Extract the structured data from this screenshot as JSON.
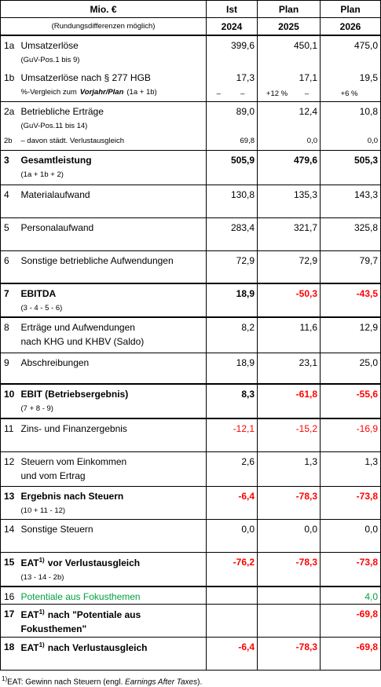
{
  "header": {
    "title": "Mio. €",
    "subtitle": "(Rundungsdifferenzen möglich)",
    "columns": [
      {
        "kind": "Ist",
        "year": "2024"
      },
      {
        "kind": "Plan",
        "year": "2025"
      },
      {
        "kind": "Plan",
        "year": "2026"
      }
    ]
  },
  "rows": [
    {
      "num": "1a",
      "label": "Umsatzerlöse",
      "sub": "(GuV-Pos.1 bis 9)",
      "values": [
        "399,6",
        "450,1",
        "475,0"
      ]
    },
    {
      "num": "1b",
      "label": "Umsatzerlöse nach § 277 HGB",
      "sub": "%-Vergleich zum",
      "sub_em": "Vorjahr/Plan",
      "sub_after": "(1a + 1b)",
      "values": [
        "17,3",
        "17,1",
        "19,5"
      ],
      "compare": [
        [
          "–",
          "–"
        ],
        [
          "+12 %",
          "–"
        ],
        [
          "+6 %"
        ]
      ]
    },
    {
      "num": "2a",
      "label": "Betriebliche Erträge",
      "sub": "(GuV-Pos.11 bis 14)",
      "values": [
        "89,0",
        "12,4",
        "10,8"
      ]
    },
    {
      "num": "2b",
      "label": "– davon städt. Verlustausgleich",
      "values": [
        "69,8",
        "0,0",
        "0,0"
      ]
    },
    {
      "num": "3",
      "label": "Gesamtleistung",
      "sub": "(1a + 1b + 2)",
      "values": [
        "505,9",
        "479,6",
        "505,3"
      ]
    },
    {
      "num": "4",
      "label": "Materialaufwand",
      "values": [
        "130,8",
        "135,3",
        "143,3"
      ]
    },
    {
      "num": "5",
      "label": "Personalaufwand",
      "values": [
        "283,4",
        "321,7",
        "325,8"
      ]
    },
    {
      "num": "6",
      "label": "Sonstige betriebliche Aufwendungen",
      "values": [
        "72,9",
        "72,9",
        "79,7"
      ]
    },
    {
      "num": "7",
      "label": "EBITDA",
      "sub": "(3 - 4 - 5 - 6)",
      "values": [
        "18,9",
        "-50,3",
        "-43,5"
      ]
    },
    {
      "num": "8",
      "label": "Erträge und Aufwendungen",
      "sub": "nach KHG und KHBV (Saldo)",
      "values": [
        "8,2",
        "11,6",
        "12,9"
      ]
    },
    {
      "num": "9",
      "label": "Abschreibungen",
      "values": [
        "18,9",
        "23,1",
        "25,0"
      ]
    },
    {
      "num": "10",
      "label": "EBIT (Betriebsergebnis)",
      "sub": "(7 + 8 - 9)",
      "values": [
        "8,3",
        "-61,8",
        "-55,6"
      ]
    },
    {
      "num": "11",
      "label": "Zins- und Finanzergebnis",
      "values": [
        "-12,1",
        "-15,2",
        "-16,9"
      ]
    },
    {
      "num": "12",
      "label": "Steuern vom Einkommen",
      "sub": "und vom Ertrag",
      "values": [
        "2,6",
        "1,3",
        "1,3"
      ]
    },
    {
      "num": "13",
      "label": "Ergebnis nach Steuern",
      "sub": "(10 + 11 - 12)",
      "values": [
        "-6,4",
        "-78,3",
        "-73,8"
      ]
    },
    {
      "num": "14",
      "label": "Sonstige Steuern",
      "values": [
        "0,0",
        "0,0",
        "0,0"
      ]
    },
    {
      "num": "15",
      "label": "EAT",
      "sup": "1)",
      "label_after": "vor Verlustausgleich",
      "sub": "(13 - 14 - 2b)",
      "values": [
        "-76,2",
        "-78,3",
        "-73,8"
      ]
    },
    {
      "num": "16",
      "label": "Potentiale aus Fokusthemen",
      "values": [
        null,
        null,
        "4,0"
      ]
    },
    {
      "num": "17",
      "label": "EAT",
      "sup": "1)",
      "label_after": "nach \"Potentiale aus",
      "sub": "Fokusthemen\"",
      "values": [
        null,
        null,
        "-69,8"
      ]
    },
    {
      "num": "18",
      "label": "EAT",
      "sup": "1)",
      "label_after": "nach Verlustausgleich",
      "values": [
        "-6,4",
        "-78,3",
        "-69,8"
      ]
    }
  ],
  "footnote": {
    "sup": "1)",
    "text": "EAT: Gewinn nach Steuern (engl.",
    "em": "Earnings After Taxes",
    "after": ")."
  }
}
